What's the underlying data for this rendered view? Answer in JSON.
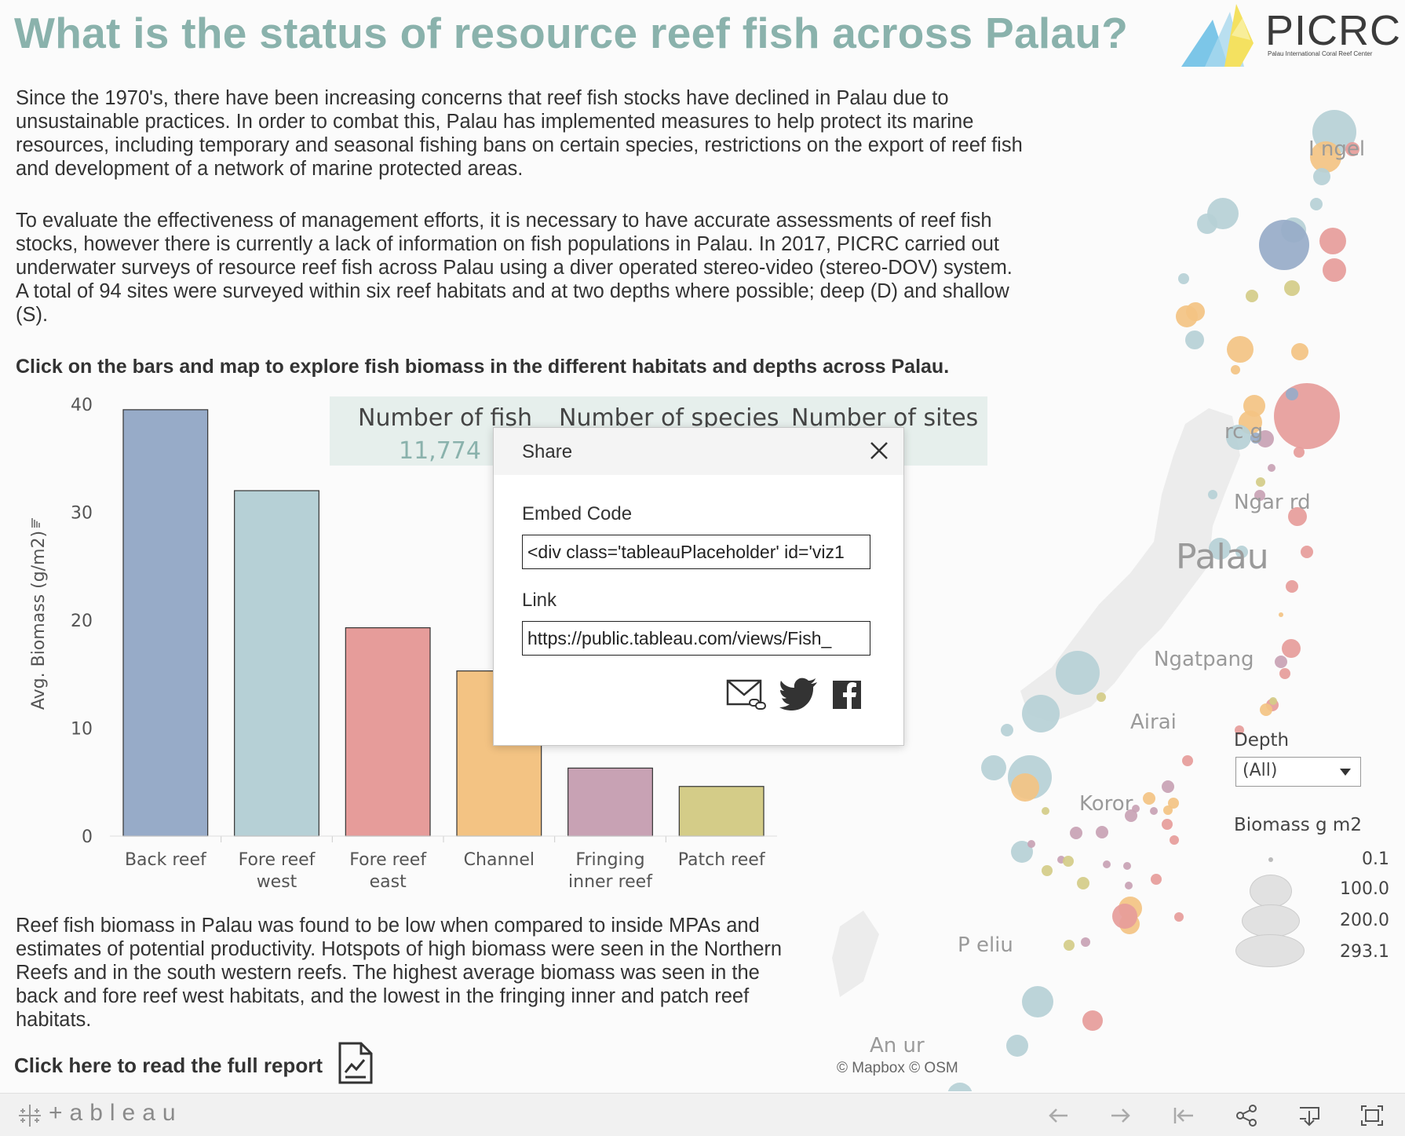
{
  "page": {
    "title": "What is the status of resource reef fish across Palau?",
    "logo_text": "PICRC",
    "logo_subtitle": "Palau International Coral Reef Center"
  },
  "intro": {
    "paragraph1": "Since the 1970's, there have been increasing concerns that reef fish stocks have declined in Palau due to unsustainable practices. In order to combat this, Palau has implemented measures to help protect its marine resources, including temporary and seasonal fishing bans on certain species, restrictions on the export of reef fish and development of a network of marine protected areas.",
    "paragraph2": "To evaluate the effectiveness of management efforts, it is necessary to have accurate assessments of reef fish stocks, however there is currently a lack of information on fish populations in Palau. In 2017, PICRC carried out underwater surveys of resource reef fish across Palau using a diver operated stereo-video (stereo-DOV) system. A total of 94 sites were surveyed within six reef habitats and at two depths where possible; deep (D) and shallow (S).",
    "instruction": "Click on the bars and map to explore fish biomass in the different habitats and depths across Palau."
  },
  "stats": {
    "fish_label": "Number of fish",
    "fish_value": "11,774",
    "species_label": "Number of species",
    "sites_label": "Number of sites"
  },
  "chart_data": {
    "type": "bar",
    "categories": [
      "Back reef",
      "Fore reef west",
      "Fore reef east",
      "Channel",
      "Fringing inner reef",
      "Patch reef"
    ],
    "category_lines": [
      [
        "Back reef"
      ],
      [
        "Fore reef",
        "west"
      ],
      [
        "Fore reef",
        "east"
      ],
      [
        "Channel"
      ],
      [
        "Fringing",
        "inner reef"
      ],
      [
        "Patch reef"
      ]
    ],
    "values": [
      39.5,
      32,
      19.3,
      15.3,
      6.3,
      4.6
    ],
    "colors": [
      "#97abc8",
      "#b6d0d6",
      "#e69c9a",
      "#f3c383",
      "#c8a2b4",
      "#d4cc88"
    ],
    "ylabel": "Avg. Biomass (g/m2)",
    "yticks": [
      0,
      10,
      20,
      30,
      40
    ],
    "ylim": [
      0,
      40
    ]
  },
  "conclusion": {
    "paragraph": "Reef fish biomass in Palau was found to be low when compared to inside MPAs and estimates of potential productivity. Hotspots of high biomass were seen in the Northern Reefs and in the south western reefs. The highest average biomass was seen in the back and fore reef west habitats, and the lowest in the fringing inner and patch reef habitats.",
    "report_link": "Click here to read the full report"
  },
  "map": {
    "labels": [
      "Kayangel",
      "Ngarchelong",
      "Ngardmau",
      "Palau",
      "Ngatpang",
      "Airai",
      "Koror",
      "Peleliu",
      "Angaur"
    ],
    "label_shown": [
      "I    ngel",
      "   rc        g",
      "Ngar    rd",
      "Palau",
      "Ngatpang",
      "Airai",
      "Koror",
      "P    eliu",
      "An    ur"
    ],
    "attribution": "© Mapbox  © OSM",
    "habitat_colors": {
      "back_reef": "#97abc8",
      "fore_reef_west": "#b6d0d6",
      "fore_reef_east": "#e69c9a",
      "channel": "#f3c383",
      "fringing_inner_reef": "#c8a2b4",
      "patch_reef": "#d4cc88"
    }
  },
  "legend": {
    "depth_title": "Depth",
    "depth_selected": "(All)",
    "biomass_title": "Biomass g m2",
    "sizes": [
      "0.1",
      "100.0",
      "200.0",
      "293.1"
    ]
  },
  "share_dialog": {
    "title": "Share",
    "embed_label": "Embed Code",
    "embed_value": "<div class='tableauPlaceholder' id='viz1",
    "link_label": "Link",
    "link_value": "https://public.tableau.com/views/Fish_"
  },
  "toolbar": {
    "brand": "+ableau"
  }
}
